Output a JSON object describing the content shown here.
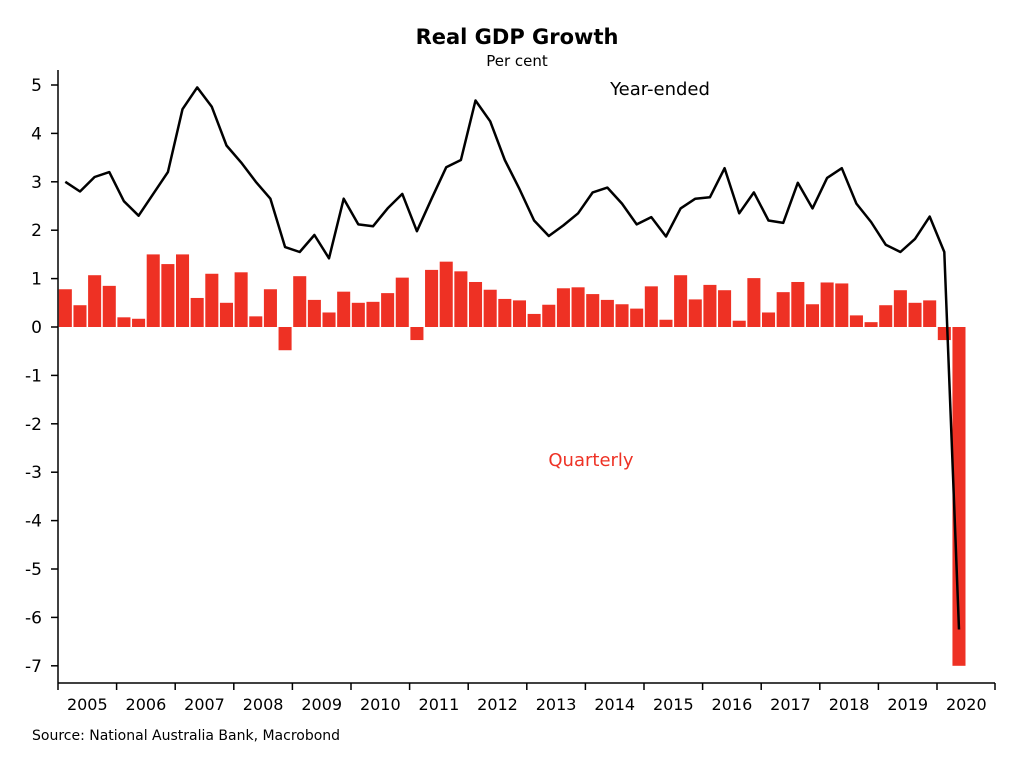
{
  "chart_data": {
    "type": "bar",
    "title": "Real GDP Growth",
    "subtitle": "Per cent",
    "source": "Source: National Australia Bank, Macrobond",
    "ylim": [
      -7,
      5
    ],
    "yticks": [
      5,
      4,
      3,
      2,
      1,
      0,
      -1,
      -2,
      -3,
      -4,
      -5,
      -6,
      -7
    ],
    "xtick_labels": [
      "2005",
      "2006",
      "2007",
      "2008",
      "2009",
      "2010",
      "2011",
      "2012",
      "2013",
      "2014",
      "2015",
      "2016",
      "2017",
      "2018",
      "2019",
      "2020"
    ],
    "x_start": "2005 Q1",
    "x_frequency": "quarterly",
    "grid": false,
    "colors": {
      "quarterly": "#ee3124",
      "year_ended": "#000000"
    },
    "series": [
      {
        "name": "Quarterly",
        "type": "bar",
        "values": [
          0.78,
          0.45,
          1.07,
          0.85,
          0.2,
          0.17,
          1.5,
          1.3,
          1.5,
          0.6,
          1.1,
          0.5,
          1.13,
          0.22,
          0.78,
          -0.48,
          1.05,
          0.56,
          0.3,
          0.73,
          0.5,
          0.52,
          0.7,
          1.02,
          -0.27,
          1.18,
          1.35,
          1.15,
          0.93,
          0.77,
          0.58,
          0.55,
          0.27,
          0.46,
          0.8,
          0.82,
          0.68,
          0.56,
          0.47,
          0.38,
          0.84,
          0.15,
          1.07,
          0.57,
          0.87,
          0.76,
          0.13,
          1.01,
          0.3,
          0.72,
          0.93,
          0.47,
          0.92,
          0.9,
          0.24,
          0.1,
          0.45,
          0.76,
          0.5,
          0.55,
          -0.27,
          -7.0
        ]
      },
      {
        "name": "Year-ended",
        "type": "line",
        "values": [
          3.0,
          2.8,
          3.1,
          3.2,
          2.6,
          2.3,
          2.75,
          3.2,
          4.5,
          4.95,
          4.55,
          3.75,
          3.4,
          3.0,
          2.65,
          1.65,
          1.55,
          1.9,
          1.42,
          2.65,
          2.12,
          2.08,
          2.45,
          2.75,
          1.98,
          2.65,
          3.3,
          3.45,
          4.68,
          4.25,
          3.45,
          2.85,
          2.2,
          1.88,
          2.1,
          2.35,
          2.78,
          2.88,
          2.55,
          2.12,
          2.27,
          1.87,
          2.45,
          2.65,
          2.68,
          3.28,
          2.35,
          2.78,
          2.2,
          2.15,
          2.98,
          2.45,
          3.08,
          3.28,
          2.55,
          2.17,
          1.7,
          1.55,
          1.82,
          2.28,
          1.55,
          -6.25
        ]
      }
    ]
  }
}
